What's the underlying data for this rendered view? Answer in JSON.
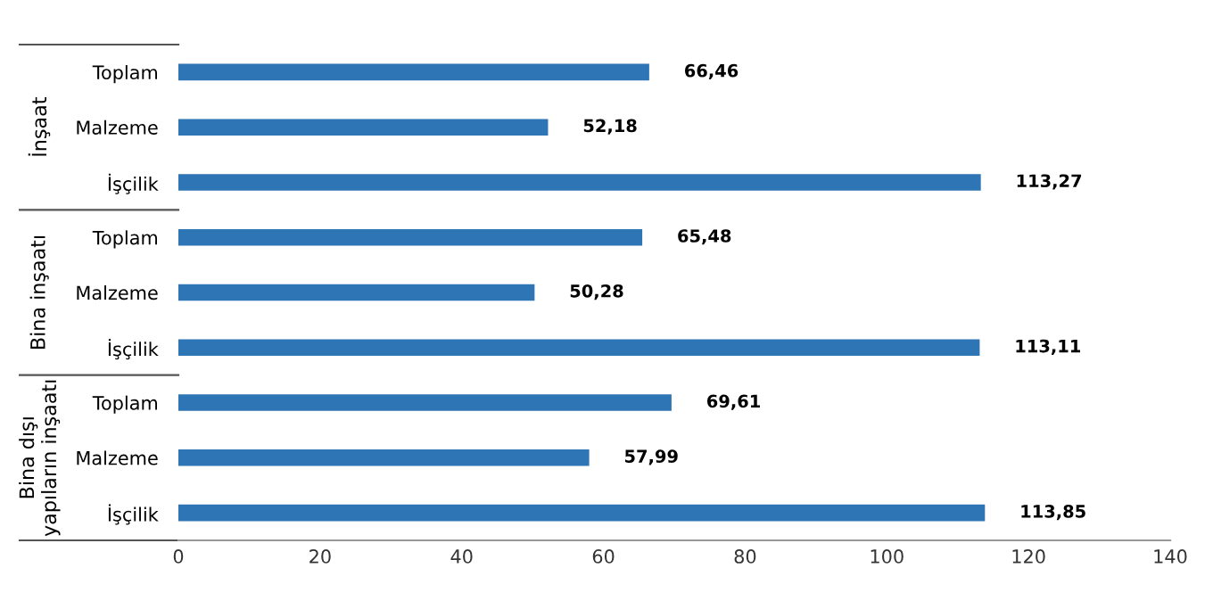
{
  "chart_data": {
    "type": "bar",
    "orientation": "horizontal",
    "categories": [
      "Toplam",
      "Malzeme",
      "İşçilik",
      "Toplam",
      "Malzeme",
      "İşçilik",
      "Toplam",
      "Malzeme",
      "İşçilik"
    ],
    "values": [
      66.46,
      52.18,
      113.27,
      65.48,
      50.28,
      113.11,
      69.61,
      57.99,
      113.85
    ],
    "value_labels": [
      "66,46",
      "52,18",
      "113,27",
      "65,48",
      "50,28",
      "113,11",
      "69,61",
      "57,99",
      "113,85"
    ],
    "color": "#2e75b6",
    "xlim": [
      0,
      140
    ],
    "xticks": [
      0,
      20,
      40,
      60,
      80,
      100,
      120,
      140
    ],
    "annotations": [
      "İnşaat",
      "Bina inşaatı",
      "Bina dışı\nyapıların inşaatı"
    ],
    "grid": false,
    "legend": false
  }
}
